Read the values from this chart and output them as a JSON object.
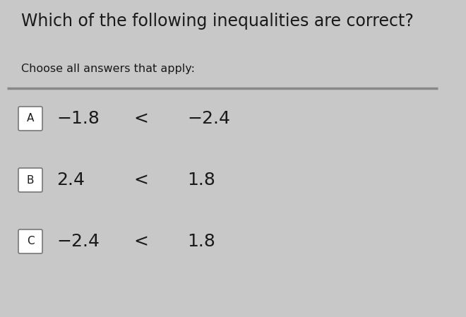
{
  "title_line1": "Which of the following inequalities are correct?",
  "subtitle": "Choose all answers that apply:",
  "bg_color": "#c8c8c8",
  "title_color": "#1a1a1a",
  "subtitle_color": "#1a1a1a",
  "options": [
    {
      "label": "A",
      "num1": "−1.8",
      "op": "<",
      "num2": "−2.4"
    },
    {
      "label": "B",
      "num1": "2.4",
      "op": "<",
      "num2": "1.8"
    },
    {
      "label": "C",
      "num1": "−2.4",
      "op": "<",
      "num2": "1.8"
    }
  ],
  "box_color": "#ffffff",
  "box_edge_color": "#777777",
  "text_color": "#1a1a1a",
  "divider_color": "#888888",
  "title_fontsize": 17,
  "subtitle_fontsize": 11.5,
  "option_fontsize": 18,
  "label_fontsize": 11
}
